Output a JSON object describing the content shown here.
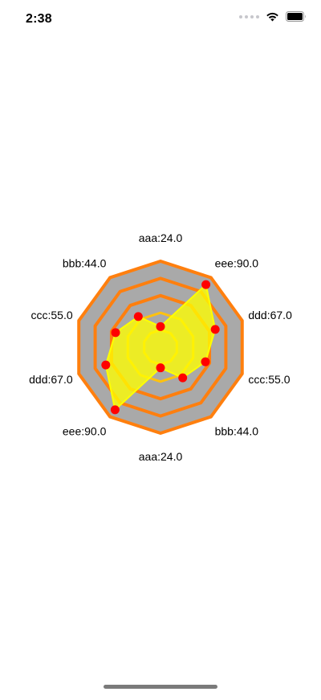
{
  "status_bar": {
    "time": "2:38",
    "wifi_icon": "wifi-icon",
    "battery_icon": "battery-icon"
  },
  "chart_data": {
    "type": "radar",
    "axis_labels": [
      "aaa:24.0",
      "eee:90.0",
      "ddd:67.0",
      "ccc:55.0",
      "bbb:44.0",
      "aaa:24.0",
      "eee:90.0",
      "ddd:67.0",
      "ccc:55.0",
      "bbb:44.0"
    ],
    "categories": [
      "aaa",
      "eee",
      "ddd",
      "ccc",
      "bbb",
      "aaa",
      "eee",
      "ddd",
      "ccc",
      "bbb"
    ],
    "values": [
      24.0,
      90.0,
      67.0,
      55.0,
      44.0,
      24.0,
      90.0,
      67.0,
      55.0,
      44.0
    ],
    "max_value": 100,
    "ring_count": 5,
    "colors": {
      "web_fill": "#a9a9a9",
      "web_stroke": "#ff7f0e",
      "inner_ring_stroke": "#ffc20e",
      "series_fill": "#ffff00",
      "series_stroke": "#ffff00",
      "point": "#ff0000"
    }
  }
}
